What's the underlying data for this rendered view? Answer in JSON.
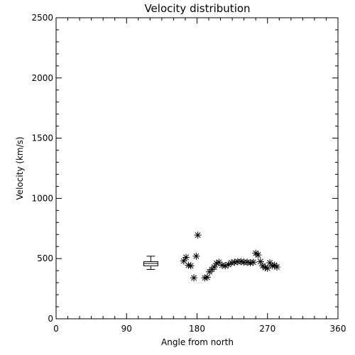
{
  "chart_data": {
    "type": "scatter",
    "title": "Velocity distribution",
    "xlabel": "Angle from north",
    "ylabel": "Velocity (km/s)",
    "xlim": [
      0,
      360
    ],
    "ylim": [
      0,
      2500
    ],
    "xticks": [
      0,
      90,
      180,
      270,
      360
    ],
    "yticks": [
      0,
      500,
      1000,
      1500,
      2000,
      2500
    ],
    "xtick_labels": [
      "0",
      "90",
      "180",
      "270",
      "360"
    ],
    "ytick_labels": [
      "0",
      "500",
      "1000",
      "1500",
      "2000",
      "2500"
    ],
    "grid": false,
    "legend": "none",
    "series": [
      {
        "marker": "asterisk",
        "points": [
          {
            "x": 163,
            "y": 480
          },
          {
            "x": 166,
            "y": 510
          },
          {
            "x": 169,
            "y": 445
          },
          {
            "x": 172,
            "y": 440
          },
          {
            "x": 176,
            "y": 340
          },
          {
            "x": 179,
            "y": 520
          },
          {
            "x": 181,
            "y": 695
          },
          {
            "x": 190,
            "y": 340
          },
          {
            "x": 193,
            "y": 345
          },
          {
            "x": 196,
            "y": 390
          },
          {
            "x": 199,
            "y": 410
          },
          {
            "x": 202,
            "y": 430
          },
          {
            "x": 205,
            "y": 460
          },
          {
            "x": 208,
            "y": 470
          },
          {
            "x": 212,
            "y": 445
          },
          {
            "x": 216,
            "y": 440
          },
          {
            "x": 220,
            "y": 450
          },
          {
            "x": 224,
            "y": 465
          },
          {
            "x": 228,
            "y": 470
          },
          {
            "x": 232,
            "y": 475
          },
          {
            "x": 236,
            "y": 475
          },
          {
            "x": 240,
            "y": 470
          },
          {
            "x": 244,
            "y": 470
          },
          {
            "x": 248,
            "y": 465
          },
          {
            "x": 252,
            "y": 470
          },
          {
            "x": 255,
            "y": 545
          },
          {
            "x": 258,
            "y": 530
          },
          {
            "x": 261,
            "y": 475
          },
          {
            "x": 264,
            "y": 440
          },
          {
            "x": 267,
            "y": 425
          },
          {
            "x": 270,
            "y": 420
          },
          {
            "x": 273,
            "y": 465
          },
          {
            "x": 276,
            "y": 440
          },
          {
            "x": 279,
            "y": 445
          },
          {
            "x": 282,
            "y": 430
          }
        ]
      }
    ],
    "boxplot": {
      "x_range": [
        112,
        130
      ],
      "whisker_low": 410,
      "q1": 440,
      "median": 460,
      "q3": 475,
      "whisker_high": 520
    }
  }
}
